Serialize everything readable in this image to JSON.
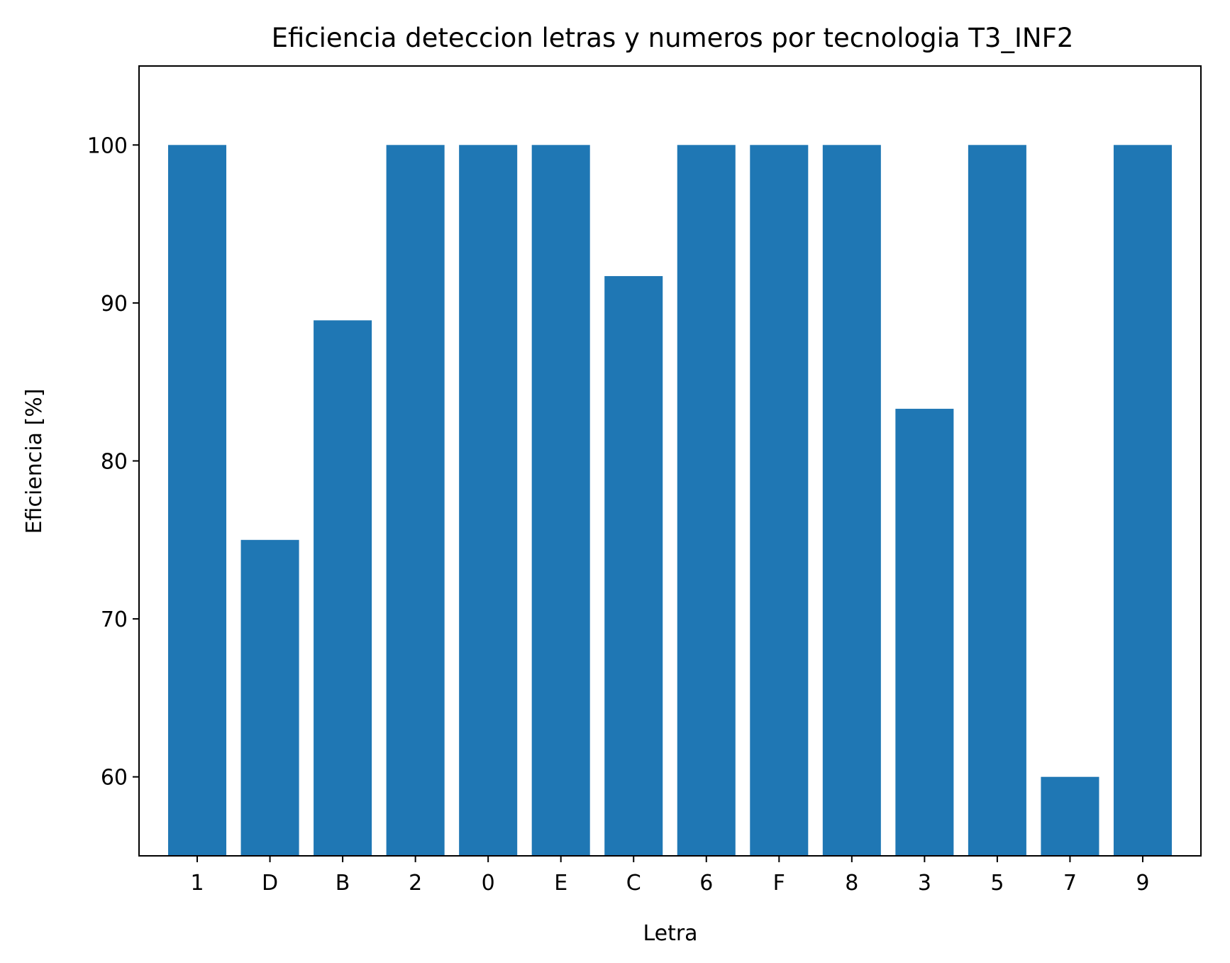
{
  "chart_data": {
    "type": "bar",
    "title": "Eficiencia deteccion letras y numeros por tecnologia T3_INF2",
    "xlabel": "Letra",
    "ylabel": "Eficiencia [%]",
    "categories": [
      "1",
      "D",
      "B",
      "2",
      "0",
      "E",
      "C",
      "6",
      "F",
      "8",
      "3",
      "5",
      "7",
      "9"
    ],
    "values": [
      100,
      75,
      88.9,
      100,
      100,
      100,
      91.7,
      100,
      100,
      100,
      83.3,
      100,
      60,
      100
    ],
    "ylim": [
      55,
      105
    ],
    "yticks": [
      60,
      70,
      80,
      90,
      100
    ],
    "grid": false,
    "bar_color": "#1f77b4"
  }
}
